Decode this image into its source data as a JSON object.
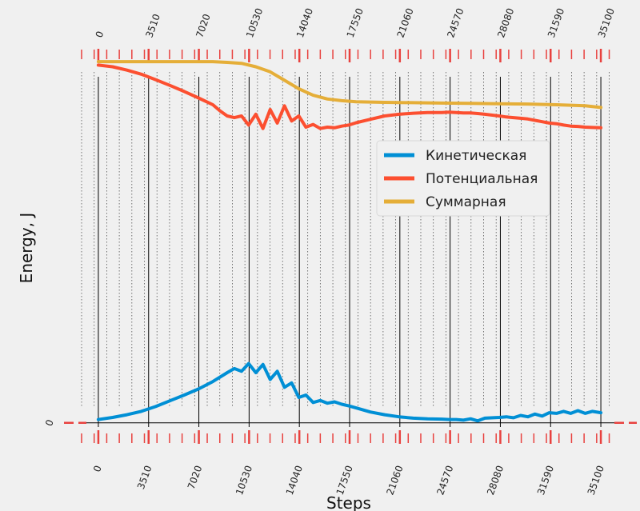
{
  "chart_data": {
    "type": "line",
    "title": "",
    "xlabel": "Steps",
    "ylabel": "Energy, J",
    "xlim": [
      -1170,
      36270
    ],
    "ylim": [
      -0.05,
      1.07
    ],
    "x_ticks": [
      0,
      3510,
      7020,
      10530,
      14040,
      17550,
      21060,
      24570,
      28080,
      31590,
      35100
    ],
    "x_tick_labels": [
      "0",
      "3510",
      "7020",
      "10530",
      "14040",
      "17550",
      "21060",
      "24570",
      "28080",
      "31590",
      "35100"
    ],
    "y_ticks": [
      0
    ],
    "y_tick_labels": [
      "0"
    ],
    "grid": true,
    "legend": {
      "placement": "center-right",
      "entries": [
        "Кинетическая",
        "Потенциальная",
        "Суммарная"
      ]
    },
    "series": [
      {
        "name": "Кинетическая",
        "color": "#008fd5",
        "x": [
          0,
          1000,
          2000,
          3000,
          4000,
          5000,
          6000,
          7000,
          8000,
          9000,
          9500,
          10000,
          10500,
          11000,
          11500,
          12000,
          12500,
          13000,
          13500,
          14000,
          14500,
          15000,
          15500,
          16000,
          16500,
          17000,
          17500,
          18000,
          19000,
          20000,
          21000,
          22000,
          23000,
          24000,
          24500,
          25000,
          25500,
          26000,
          26500,
          27000,
          28000,
          28500,
          29000,
          29500,
          30000,
          30500,
          31000,
          31500,
          32000,
          32500,
          33000,
          33500,
          34000,
          34500,
          35100
        ],
        "y": [
          0.01,
          0.016,
          0.024,
          0.034,
          0.048,
          0.065,
          0.082,
          0.1,
          0.122,
          0.148,
          0.16,
          0.152,
          0.175,
          0.148,
          0.172,
          0.128,
          0.152,
          0.105,
          0.118,
          0.075,
          0.082,
          0.06,
          0.066,
          0.058,
          0.062,
          0.055,
          0.05,
          0.044,
          0.032,
          0.024,
          0.018,
          0.014,
          0.012,
          0.011,
          0.01,
          0.01,
          0.008,
          0.012,
          0.006,
          0.014,
          0.016,
          0.018,
          0.015,
          0.022,
          0.018,
          0.026,
          0.02,
          0.03,
          0.028,
          0.034,
          0.028,
          0.036,
          0.028,
          0.034,
          0.03
        ]
      },
      {
        "name": "Потенциальная",
        "color": "#fc4f30",
        "x": [
          0,
          1000,
          2000,
          3000,
          4000,
          5000,
          6000,
          7000,
          8000,
          8500,
          9000,
          9500,
          10000,
          10500,
          11000,
          11500,
          12000,
          12500,
          13000,
          13500,
          14000,
          14500,
          15000,
          15500,
          16000,
          16500,
          17000,
          17500,
          18000,
          19000,
          20000,
          21000,
          22000,
          23000,
          24000,
          24500,
          25000,
          25500,
          26000,
          26500,
          27000,
          28000,
          28500,
          29000,
          29500,
          30000,
          30500,
          31000,
          31500,
          32000,
          32500,
          33000,
          33500,
          34000,
          34500,
          35100
        ],
        "y": [
          1.055,
          1.05,
          1.04,
          1.028,
          1.012,
          0.995,
          0.977,
          0.958,
          0.938,
          0.92,
          0.905,
          0.9,
          0.905,
          0.878,
          0.91,
          0.868,
          0.924,
          0.884,
          0.935,
          0.89,
          0.905,
          0.872,
          0.88,
          0.868,
          0.872,
          0.87,
          0.875,
          0.878,
          0.885,
          0.895,
          0.905,
          0.91,
          0.913,
          0.915,
          0.915,
          0.916,
          0.915,
          0.914,
          0.914,
          0.912,
          0.91,
          0.905,
          0.902,
          0.9,
          0.898,
          0.896,
          0.892,
          0.888,
          0.884,
          0.882,
          0.878,
          0.875,
          0.874,
          0.872,
          0.871,
          0.87
        ]
      },
      {
        "name": "Суммарная",
        "color": "#e5ae38",
        "x": [
          0,
          2000,
          4000,
          6000,
          8000,
          9000,
          10000,
          11000,
          12000,
          13000,
          14000,
          15000,
          16000,
          17000,
          18000,
          20000,
          22000,
          24000,
          26000,
          28000,
          30000,
          32000,
          34000,
          35100
        ],
        "y": [
          1.065,
          1.065,
          1.065,
          1.065,
          1.065,
          1.063,
          1.06,
          1.05,
          1.035,
          1.01,
          0.985,
          0.966,
          0.955,
          0.95,
          0.947,
          0.945,
          0.944,
          0.943,
          0.942,
          0.941,
          0.94,
          0.938,
          0.935,
          0.93
        ]
      }
    ]
  }
}
